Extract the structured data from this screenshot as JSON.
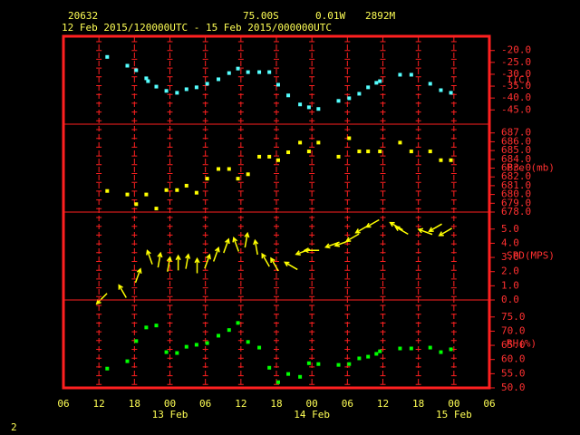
{
  "header": {
    "station": "20632",
    "latitude": "75.00S",
    "longitude": "0.01W",
    "elevation": "2892M",
    "period": "12 Feb 2015/120000UTC - 15 Feb 2015/000000UTC"
  },
  "xaxis": {
    "xlim": [
      0,
      72
    ],
    "xticks": [
      {
        "value": 0,
        "label": "06"
      },
      {
        "value": 6,
        "label": "12"
      },
      {
        "value": 12,
        "label": "18"
      },
      {
        "value": 18,
        "label": "00"
      },
      {
        "value": 24,
        "label": "06"
      },
      {
        "value": 30,
        "label": "12"
      },
      {
        "value": 36,
        "label": "18"
      },
      {
        "value": 42,
        "label": "00"
      },
      {
        "value": 48,
        "label": "06"
      },
      {
        "value": 54,
        "label": "12"
      },
      {
        "value": 60,
        "label": "18"
      },
      {
        "value": 66,
        "label": "00"
      },
      {
        "value": 72,
        "label": "06"
      }
    ],
    "day_labels": [
      {
        "value": 18,
        "label": "13 Feb"
      },
      {
        "value": 42,
        "label": "14 Feb"
      },
      {
        "value": 66,
        "label": "15 Feb"
      }
    ]
  },
  "chart_data": [
    {
      "type": "scatter",
      "ylabel": "T(C)",
      "color": "#55ffff",
      "ylim": [
        -51,
        -14
      ],
      "yticks": [
        {
          "value": -20,
          "label": "-20.0"
        },
        {
          "value": -25,
          "label": "-25.0"
        },
        {
          "value": -30,
          "label": "-30.0"
        },
        {
          "value": -35,
          "label": "-35.0"
        },
        {
          "value": -40,
          "label": "-40.0"
        },
        {
          "value": -45,
          "label": "-45.0"
        }
      ],
      "x": [
        7.4,
        10.8,
        12.3,
        14.0,
        14.3,
        15.7,
        17.4,
        19.2,
        20.8,
        22.5,
        24.3,
        26.2,
        28.0,
        29.5,
        31.2,
        33.1,
        34.8,
        36.3,
        38.0,
        40.0,
        41.5,
        43.1,
        46.5,
        48.3,
        50.0,
        51.5,
        52.9,
        53.5,
        56.9,
        58.8,
        62.0,
        63.8,
        65.5
      ],
      "values": [
        -22.7,
        -26.4,
        -28.3,
        -31.7,
        -32.9,
        -35.2,
        -37.0,
        -37.8,
        -36.3,
        -35.5,
        -34.0,
        -32.1,
        -29.5,
        -27.6,
        -29.1,
        -29.1,
        -29.1,
        -34.4,
        -38.9,
        -42.7,
        -43.9,
        -44.6,
        -41.2,
        -40.1,
        -38.2,
        -35.5,
        -33.6,
        -32.9,
        -30.2,
        -30.2,
        -34.0,
        -36.7,
        -37.8
      ]
    },
    {
      "type": "scatter",
      "ylabel": "Pre (mb)",
      "color": "#ffff00",
      "ylim": [
        678,
        688
      ],
      "yticks": [
        {
          "value": 687,
          "label": "687.0"
        },
        {
          "value": 686,
          "label": "686.0"
        },
        {
          "value": 685,
          "label": "685.0"
        },
        {
          "value": 684,
          "label": "684.0"
        },
        {
          "value": 683,
          "label": "683.0"
        },
        {
          "value": 682,
          "label": "682.0"
        },
        {
          "value": 681,
          "label": "681.0"
        },
        {
          "value": 680,
          "label": "680.0"
        },
        {
          "value": 679,
          "label": "679.0"
        },
        {
          "value": 678,
          "label": "678.0"
        }
      ],
      "x": [
        7.4,
        10.8,
        12.3,
        14.0,
        15.7,
        17.4,
        19.2,
        20.8,
        22.5,
        24.3,
        26.2,
        28.0,
        29.5,
        31.2,
        33.1,
        34.8,
        36.3,
        38.0,
        40.0,
        41.5,
        43.1,
        46.5,
        48.3,
        50.0,
        51.5,
        53.5,
        56.9,
        58.8,
        62.0,
        63.8,
        65.5
      ],
      "values": [
        680.4,
        680.0,
        678.9,
        680.0,
        678.4,
        680.5,
        680.5,
        681.0,
        680.2,
        681.8,
        682.9,
        682.9,
        681.8,
        682.3,
        684.3,
        684.3,
        683.9,
        684.8,
        685.9,
        684.9,
        685.9,
        684.3,
        686.4,
        684.9,
        684.9,
        684.9,
        685.9,
        684.9,
        684.9,
        683.9,
        683.9
      ]
    },
    {
      "type": "wind",
      "ylabel": "SPD(MPS)",
      "color": "#ffff00",
      "ylim": [
        0,
        6.2
      ],
      "yticks": [
        {
          "value": 5,
          "label": "5.0"
        },
        {
          "value": 4,
          "label": "4.0"
        },
        {
          "value": 3,
          "label": "3.0"
        },
        {
          "value": 2,
          "label": "2.0"
        },
        {
          "value": 1,
          "label": "1.0"
        },
        {
          "value": 0,
          "label": "0.0"
        }
      ],
      "x": [
        6.5,
        10.0,
        12.6,
        14.6,
        16.2,
        17.8,
        19.4,
        20.9,
        22.6,
        24.3,
        25.8,
        27.5,
        29.2,
        30.9,
        32.6,
        34.2,
        35.7,
        38.5,
        40.5,
        42.0,
        45.5,
        47.1,
        48.9,
        50.5,
        52.3,
        56.3,
        57.2,
        61.2,
        62.9,
        64.6
      ],
      "values": [
        0.1,
        0.6,
        1.7,
        3.0,
        2.8,
        2.5,
        2.6,
        2.7,
        2.4,
        2.7,
        3.2,
        3.8,
        3.9,
        4.2,
        3.7,
        2.8,
        2.5,
        2.4,
        3.4,
        3.5,
        3.9,
        4.0,
        4.4,
        5.0,
        5.4,
        5.2,
        4.9,
        4.8,
        5.1,
        4.8
      ],
      "directions": [
        225,
        330,
        20,
        340,
        10,
        10,
        0,
        10,
        0,
        20,
        20,
        20,
        340,
        10,
        350,
        330,
        330,
        300,
        250,
        270,
        250,
        250,
        240,
        240,
        240,
        300,
        300,
        290,
        240,
        240
      ]
    },
    {
      "type": "scatter",
      "ylabel": "RH(%)",
      "color": "#00ff00",
      "ylim": [
        50,
        81
      ],
      "yticks": [
        {
          "value": 75,
          "label": "75.0"
        },
        {
          "value": 70,
          "label": "70.0"
        },
        {
          "value": 65,
          "label": "65.0"
        },
        {
          "value": 60,
          "label": "60.0"
        },
        {
          "value": 55,
          "label": "55.0"
        },
        {
          "value": 50,
          "label": "50.0"
        }
      ],
      "x": [
        7.4,
        10.8,
        12.3,
        14.0,
        15.7,
        17.4,
        19.2,
        20.8,
        22.5,
        24.3,
        26.2,
        28.0,
        29.5,
        31.2,
        33.1,
        34.8,
        36.3,
        38.0,
        40.0,
        41.5,
        43.1,
        46.5,
        48.3,
        50.0,
        51.5,
        52.9,
        53.5,
        56.9,
        58.8,
        62.0,
        63.8,
        65.5
      ],
      "values": [
        56.8,
        59.4,
        66.5,
        71.3,
        72.0,
        62.6,
        62.3,
        64.5,
        65.2,
        65.8,
        68.4,
        70.4,
        72.9,
        66.2,
        64.2,
        57.1,
        52.0,
        54.9,
        53.9,
        58.7,
        58.4,
        58.1,
        58.4,
        60.4,
        61.0,
        62.0,
        62.9,
        63.9,
        63.9,
        64.2,
        62.6,
        63.6
      ]
    }
  ],
  "footer": "2"
}
